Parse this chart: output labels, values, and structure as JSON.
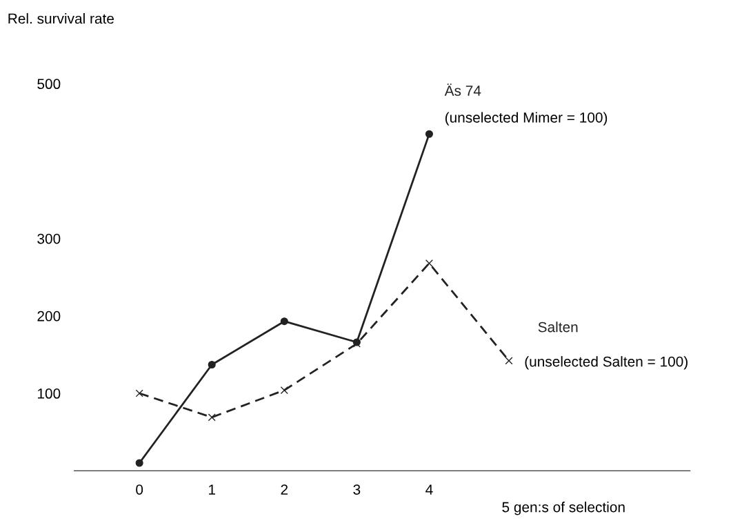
{
  "chart_data": {
    "type": "line",
    "ylabel": "Rel. survival rate",
    "xlabel": "5 gen:s of selection",
    "xlim": [
      -0.9,
      7.6
    ],
    "xticks": [
      0,
      1,
      2,
      3,
      4
    ],
    "ylim": [
      0,
      500
    ],
    "yticks": [
      100,
      200,
      300,
      500
    ],
    "grid": false,
    "legend": false,
    "series": [
      {
        "name": "Äs 74",
        "color": "#222222",
        "line_style": "solid",
        "marker": "circle",
        "x": [
          0,
          1,
          2,
          3,
          4
        ],
        "values": [
          10,
          137,
          193,
          166,
          435
        ]
      },
      {
        "name": "Salten",
        "color": "#222222",
        "line_style": "dashed",
        "marker": "cross",
        "x": [
          0,
          1,
          2,
          3,
          4,
          5.1
        ],
        "values": [
          100,
          69,
          104,
          164,
          268,
          142
        ]
      }
    ],
    "annotations": [
      {
        "text": "(unselected Mimer = 100)",
        "x": 4,
        "y": 435
      },
      {
        "text": "(unselected Salten = 100)",
        "x": 5.1,
        "y": 142
      }
    ]
  }
}
